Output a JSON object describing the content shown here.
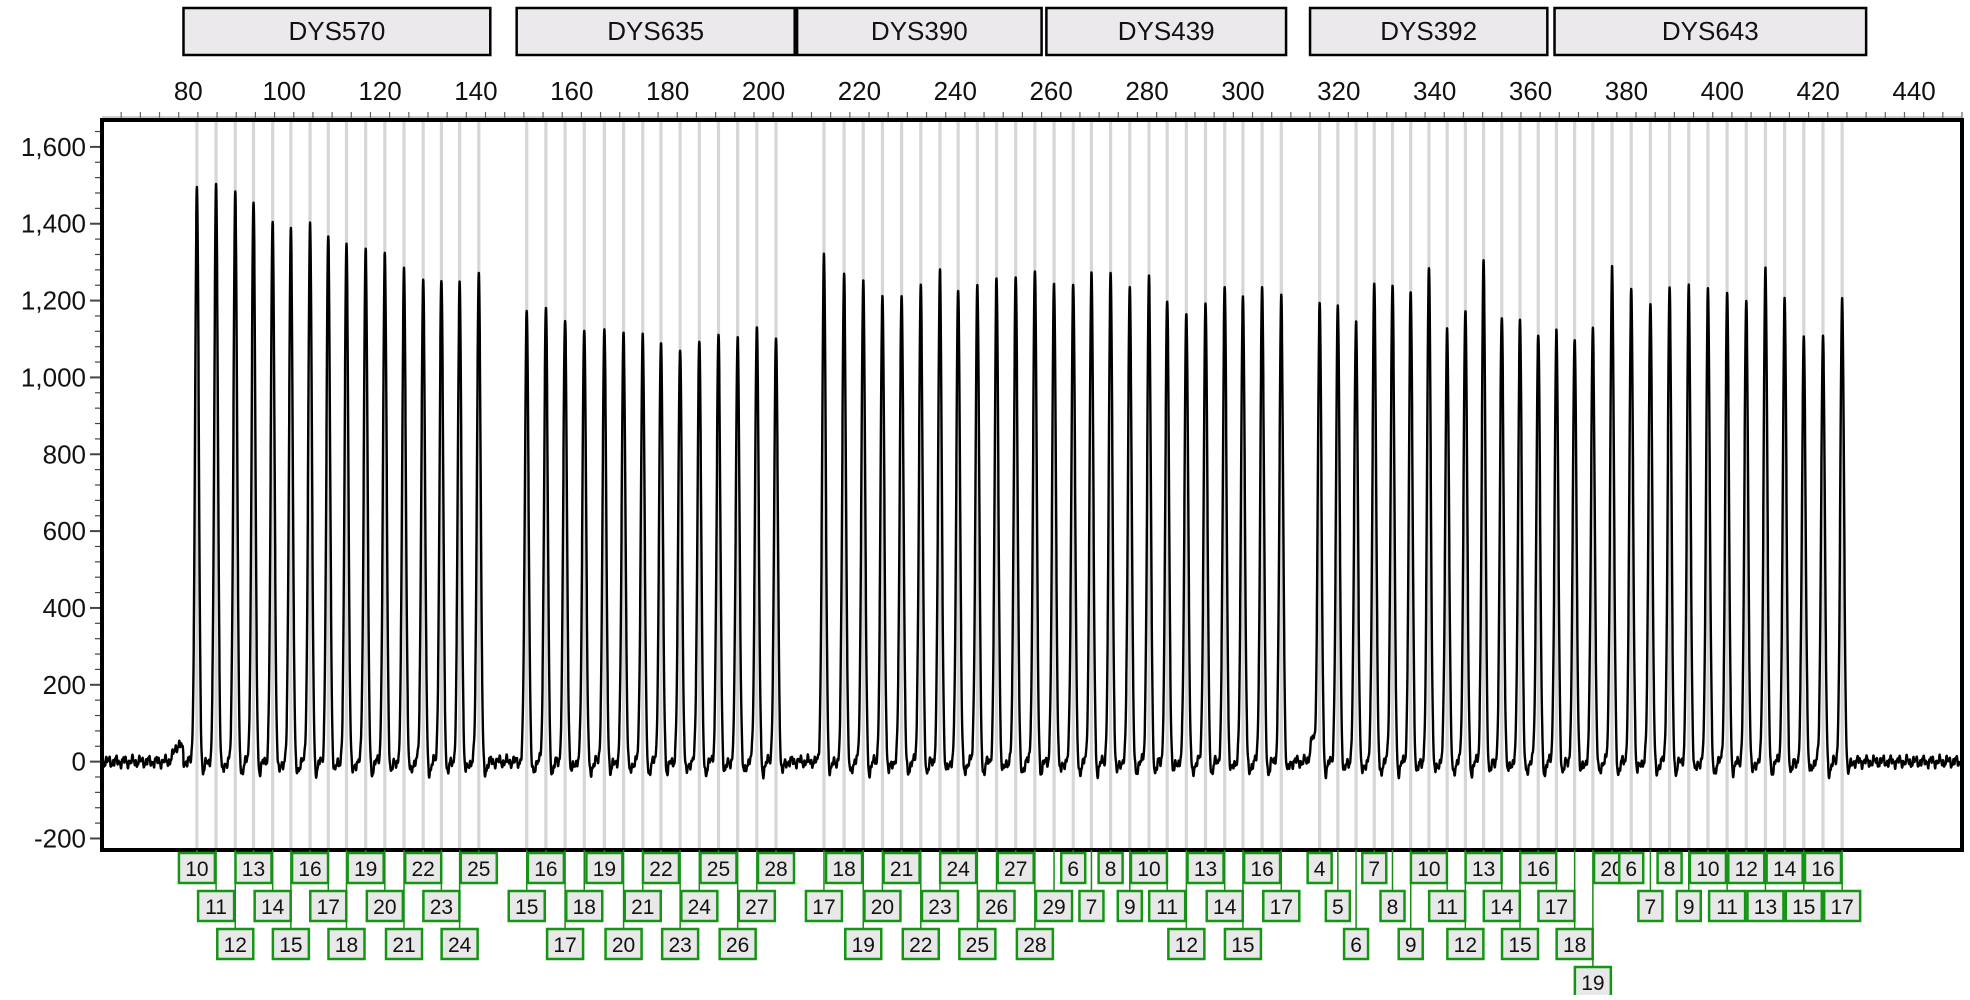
{
  "chart_data": {
    "type": "line",
    "title": "",
    "xlabel": "",
    "ylabel": "",
    "xlim": [
      62,
      450
    ],
    "ylim": [
      -230,
      1670
    ],
    "x_ticks": [
      "80",
      "100",
      "120",
      "140",
      "160",
      "180",
      "200",
      "220",
      "240",
      "260",
      "280",
      "300",
      "320",
      "340",
      "360",
      "380",
      "400",
      "420",
      "440"
    ],
    "y_ticks": [
      "1,600",
      "1,400",
      "1,200",
      "1,000",
      "800",
      "600",
      "400",
      "200",
      "0",
      "-200"
    ],
    "grid": false,
    "loci": [
      {
        "name": "DYS570",
        "range": [
          79,
          143
        ]
      },
      {
        "name": "DYS635",
        "range": [
          148.5,
          206.5
        ]
      },
      {
        "name": "DYS390",
        "range": [
          207,
          258
        ]
      },
      {
        "name": "DYS439",
        "range": [
          259,
          309
        ]
      },
      {
        "name": "DYS392",
        "range": [
          314,
          363.5
        ]
      },
      {
        "name": "DYS643",
        "range": [
          365,
          430
        ]
      }
    ],
    "series": [
      {
        "peaks": [
          {
            "x": 81.8,
            "y": 1490,
            "allele": "10",
            "row": 0
          },
          {
            "x": 85.8,
            "y": 1500,
            "allele": "11",
            "row": 1
          },
          {
            "x": 89.8,
            "y": 1480,
            "allele": "12",
            "row": 2
          },
          {
            "x": 93.6,
            "y": 1460,
            "allele": "13",
            "row": 0
          },
          {
            "x": 97.6,
            "y": 1410,
            "allele": "14",
            "row": 1
          },
          {
            "x": 101.4,
            "y": 1390,
            "allele": "15",
            "row": 2
          },
          {
            "x": 105.4,
            "y": 1400,
            "allele": "16",
            "row": 0
          },
          {
            "x": 109.2,
            "y": 1360,
            "allele": "17",
            "row": 1
          },
          {
            "x": 113.0,
            "y": 1350,
            "allele": "18",
            "row": 2
          },
          {
            "x": 117.0,
            "y": 1340,
            "allele": "19",
            "row": 0
          },
          {
            "x": 121.0,
            "y": 1310,
            "allele": "20",
            "row": 1
          },
          {
            "x": 125.0,
            "y": 1280,
            "allele": "21",
            "row": 2
          },
          {
            "x": 129.0,
            "y": 1250,
            "allele": "22",
            "row": 0
          },
          {
            "x": 132.8,
            "y": 1250,
            "allele": "23",
            "row": 1
          },
          {
            "x": 136.6,
            "y": 1240,
            "allele": "24",
            "row": 2
          },
          {
            "x": 140.6,
            "y": 1280,
            "allele": "25",
            "row": 0
          },
          {
            "x": 150.6,
            "y": 1180,
            "allele": "15",
            "row": 1
          },
          {
            "x": 154.6,
            "y": 1180,
            "allele": "16",
            "row": 0
          },
          {
            "x": 158.6,
            "y": 1150,
            "allele": "17",
            "row": 2
          },
          {
            "x": 162.6,
            "y": 1140,
            "allele": "18",
            "row": 1
          },
          {
            "x": 166.8,
            "y": 1120,
            "allele": "19",
            "row": 0
          },
          {
            "x": 170.8,
            "y": 1120,
            "allele": "20",
            "row": 2
          },
          {
            "x": 174.8,
            "y": 1110,
            "allele": "21",
            "row": 1
          },
          {
            "x": 178.6,
            "y": 1090,
            "allele": "22",
            "row": 0
          },
          {
            "x": 182.6,
            "y": 1080,
            "allele": "23",
            "row": 2
          },
          {
            "x": 186.6,
            "y": 1100,
            "allele": "24",
            "row": 1
          },
          {
            "x": 190.6,
            "y": 1100,
            "allele": "25",
            "row": 0
          },
          {
            "x": 194.6,
            "y": 1110,
            "allele": "26",
            "row": 2
          },
          {
            "x": 198.6,
            "y": 1140,
            "allele": "27",
            "row": 1
          },
          {
            "x": 202.6,
            "y": 1100,
            "allele": "28",
            "row": 0
          },
          {
            "x": 212.6,
            "y": 1310,
            "allele": "17",
            "row": 1
          },
          {
            "x": 216.8,
            "y": 1270,
            "allele": "18",
            "row": 0
          },
          {
            "x": 220.8,
            "y": 1250,
            "allele": "19",
            "row": 2
          },
          {
            "x": 224.8,
            "y": 1210,
            "allele": "20",
            "row": 1
          },
          {
            "x": 228.8,
            "y": 1220,
            "allele": "21",
            "row": 0
          },
          {
            "x": 232.8,
            "y": 1230,
            "allele": "22",
            "row": 2
          },
          {
            "x": 236.8,
            "y": 1270,
            "allele": "23",
            "row": 1
          },
          {
            "x": 240.6,
            "y": 1240,
            "allele": "24",
            "row": 0
          },
          {
            "x": 244.6,
            "y": 1240,
            "allele": "25",
            "row": 2
          },
          {
            "x": 248.6,
            "y": 1250,
            "allele": "26",
            "row": 1
          },
          {
            "x": 252.6,
            "y": 1270,
            "allele": "27",
            "row": 0
          },
          {
            "x": 256.6,
            "y": 1280,
            "allele": "28",
            "row": 2
          },
          {
            "x": 260.6,
            "y": 1250,
            "allele": "29",
            "row": 1
          },
          {
            "x": 264.6,
            "y": 1250,
            "allele": "6",
            "row": 0
          },
          {
            "x": 268.4,
            "y": 1270,
            "allele": "7",
            "row": 1
          },
          {
            "x": 272.4,
            "y": 1270,
            "allele": "8",
            "row": 0
          },
          {
            "x": 276.4,
            "y": 1240,
            "allele": "9",
            "row": 1
          },
          {
            "x": 280.4,
            "y": 1250,
            "allele": "10",
            "row": 0
          },
          {
            "x": 284.2,
            "y": 1200,
            "allele": "11",
            "row": 1
          },
          {
            "x": 288.2,
            "y": 1180,
            "allele": "12",
            "row": 2
          },
          {
            "x": 292.2,
            "y": 1190,
            "allele": "13",
            "row": 0
          },
          {
            "x": 296.2,
            "y": 1230,
            "allele": "14",
            "row": 1
          },
          {
            "x": 300.0,
            "y": 1220,
            "allele": "15",
            "row": 2
          },
          {
            "x": 304.0,
            "y": 1230,
            "allele": "16",
            "row": 0
          },
          {
            "x": 308.0,
            "y": 1200,
            "allele": "17",
            "row": 1
          },
          {
            "x": 316.0,
            "y": 1190,
            "allele": "4",
            "row": 0
          },
          {
            "x": 319.8,
            "y": 1180,
            "allele": "5",
            "row": 1
          },
          {
            "x": 323.6,
            "y": 1150,
            "allele": "6",
            "row": 2
          },
          {
            "x": 327.4,
            "y": 1250,
            "allele": "7",
            "row": 0
          },
          {
            "x": 331.2,
            "y": 1240,
            "allele": "8",
            "row": 1
          },
          {
            "x": 335.0,
            "y": 1210,
            "allele": "9",
            "row": 2
          },
          {
            "x": 338.8,
            "y": 1290,
            "allele": "10",
            "row": 0
          },
          {
            "x": 342.6,
            "y": 1130,
            "allele": "11",
            "row": 1
          },
          {
            "x": 346.4,
            "y": 1180,
            "allele": "12",
            "row": 2
          },
          {
            "x": 350.2,
            "y": 1290,
            "allele": "13",
            "row": 0
          },
          {
            "x": 354.0,
            "y": 1160,
            "allele": "14",
            "row": 1
          },
          {
            "x": 357.8,
            "y": 1150,
            "allele": "15",
            "row": 2
          },
          {
            "x": 361.6,
            "y": 1120,
            "allele": "16",
            "row": 0
          },
          {
            "x": 365.4,
            "y": 1110,
            "allele": "17",
            "row": 1
          },
          {
            "x": 369.2,
            "y": 1100,
            "allele": "18",
            "row": 2
          },
          {
            "x": 373.0,
            "y": 1130,
            "allele": "19",
            "row": 3
          },
          {
            "x": 377.0,
            "y": 1280,
            "allele": "20",
            "row": 0
          },
          {
            "x": 381.0,
            "y": 1220,
            "allele": "6",
            "row": 0
          },
          {
            "x": 385.0,
            "y": 1200,
            "allele": "7",
            "row": 1
          },
          {
            "x": 389.0,
            "y": 1230,
            "allele": "8",
            "row": 0
          },
          {
            "x": 393.0,
            "y": 1230,
            "allele": "9",
            "row": 1
          },
          {
            "x": 397.0,
            "y": 1230,
            "allele": "10",
            "row": 0
          },
          {
            "x": 401.0,
            "y": 1210,
            "allele": "11",
            "row": 1
          },
          {
            "x": 405.0,
            "y": 1200,
            "allele": "12",
            "row": 0
          },
          {
            "x": 409.0,
            "y": 1290,
            "allele": "13",
            "row": 1
          },
          {
            "x": 413.0,
            "y": 1190,
            "allele": "14",
            "row": 0
          },
          {
            "x": 417.0,
            "y": 1100,
            "allele": "15",
            "row": 1
          },
          {
            "x": 421.0,
            "y": 1110,
            "allele": "16",
            "row": 0
          },
          {
            "x": 425.0,
            "y": 1200,
            "allele": "17",
            "row": 1
          }
        ]
      }
    ]
  }
}
